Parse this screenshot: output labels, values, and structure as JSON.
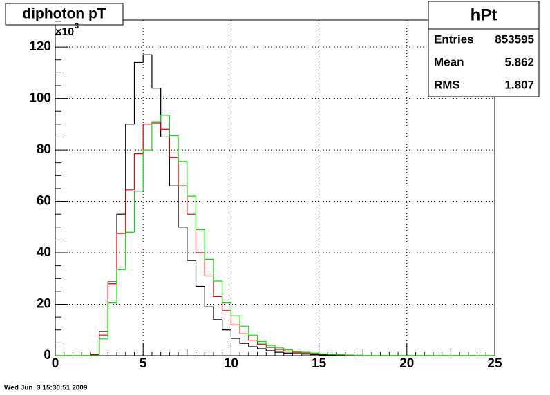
{
  "chart_data": {
    "type": "histogram",
    "title": "diphoton pT",
    "bins": [
      0,
      0.5,
      1,
      1.5,
      2,
      2.5,
      3,
      3.5,
      4,
      4.5,
      5,
      5.5,
      6,
      6.5,
      7,
      7.5,
      8,
      8.5,
      9,
      9.5,
      10,
      10.5,
      11,
      11.5,
      12,
      12.5,
      13,
      13.5,
      14,
      14.5,
      15,
      15.5,
      16,
      16.5,
      17,
      17.5,
      18,
      18.5,
      19,
      19.5,
      20,
      20.5,
      21,
      21.5,
      22,
      22.5,
      23,
      23.5,
      24,
      24.5,
      25
    ],
    "series": [
      {
        "color": "#000000",
        "values": [
          0,
          0,
          0,
          0,
          0.5,
          9.4,
          28.7,
          55,
          90,
          114,
          117,
          104,
          85,
          66,
          50,
          37,
          27,
          19,
          14,
          10,
          6.7,
          4.8,
          3.5,
          2.7,
          1.9,
          1.3,
          1.0,
          0.8,
          0.6,
          0.4,
          0.3,
          0.2,
          0.15,
          0.1,
          0.05,
          0,
          0,
          0,
          0,
          0,
          0,
          0,
          0,
          0,
          0,
          0,
          0,
          0,
          0,
          0
        ]
      },
      {
        "color": "#e00000",
        "values": [
          0,
          0,
          0,
          0,
          0.3,
          8,
          28,
          47.5,
          64.5,
          78.5,
          90,
          90.5,
          88,
          77,
          66,
          55,
          40,
          31,
          23,
          17.5,
          12,
          8.5,
          6,
          4.5,
          3.2,
          2.4,
          1.8,
          1.3,
          1.0,
          0.8,
          0.6,
          0.4,
          0.3,
          0.2,
          0.15,
          0,
          0,
          0,
          0,
          0,
          0,
          0,
          0,
          0,
          0,
          0,
          0,
          0,
          0,
          0
        ]
      },
      {
        "color": "#00dd00",
        "values": [
          0,
          0,
          0,
          0,
          0,
          6.5,
          20.5,
          33.5,
          48,
          64,
          80,
          91,
          93.5,
          85.5,
          75.5,
          62,
          49,
          37.5,
          29,
          20.5,
          15.5,
          11.5,
          8,
          5.5,
          4,
          3,
          2.3,
          1.7,
          1.3,
          1.0,
          0.7,
          0.5,
          0.35,
          0.25,
          0.15,
          0,
          0,
          0,
          0,
          0,
          0,
          0,
          0,
          0,
          0,
          0,
          0,
          0,
          0,
          0
        ]
      }
    ],
    "xlim": [
      0,
      25
    ],
    "xticks": [
      0,
      5,
      10,
      15,
      20,
      25
    ],
    "ylim": [
      0,
      130.5
    ],
    "yticks": [
      0,
      20,
      40,
      60,
      80,
      100,
      120
    ],
    "y_multiplier": "×10",
    "y_multiplier_exponent": "3",
    "grid": true,
    "stats": {
      "title": "hPt",
      "rows": [
        [
          "Entries",
          "853595"
        ],
        [
          "Mean",
          "5.862"
        ],
        [
          "RMS",
          "1.807"
        ]
      ]
    },
    "timestamp": "Wed Jun  3 15:30:51 2009"
  }
}
